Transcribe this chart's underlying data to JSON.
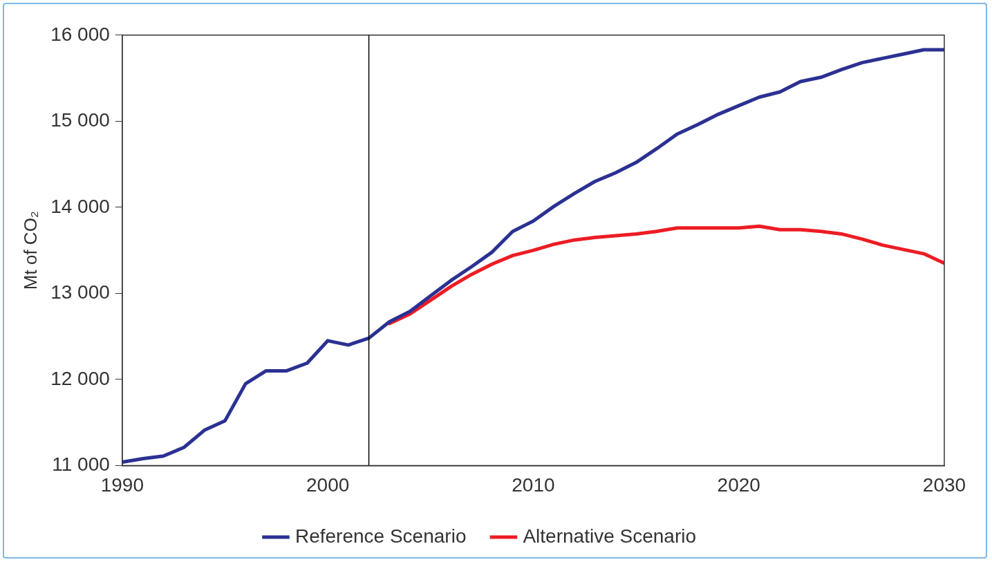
{
  "chart_data": {
    "type": "line",
    "ylabel": "Mt of CO₂",
    "xlim": [
      1990,
      2030
    ],
    "xticks": [
      1990,
      2000,
      2010,
      2020,
      2030
    ],
    "ylim": [
      11000,
      16000
    ],
    "yticks": [
      {
        "value": 11000,
        "label": "11 000"
      },
      {
        "value": 12000,
        "label": "12 000"
      },
      {
        "value": 13000,
        "label": "13 000"
      },
      {
        "value": 14000,
        "label": "14 000"
      },
      {
        "value": 15000,
        "label": "15 000"
      },
      {
        "value": 16000,
        "label": "16 000"
      }
    ],
    "grid": false,
    "legend": "bottom",
    "marker": "none",
    "line_style": "solid",
    "ref_lines": [
      {
        "axis": "x",
        "value": 2002,
        "color": "#000000"
      }
    ],
    "series": [
      {
        "name": "Reference Scenario",
        "color": "#2b3192",
        "x": [
          1990,
          1991,
          1992,
          1993,
          1994,
          1995,
          1996,
          1997,
          1998,
          1999,
          2000,
          2001,
          2002,
          2003,
          2004,
          2005,
          2006,
          2007,
          2008,
          2009,
          2010,
          2011,
          2012,
          2013,
          2014,
          2015,
          2016,
          2017,
          2018,
          2019,
          2020,
          2021,
          2022,
          2023,
          2024,
          2025,
          2026,
          2027,
          2028,
          2029,
          2030
        ],
        "values": [
          11040,
          11080,
          11110,
          11210,
          11410,
          11520,
          11950,
          12100,
          12100,
          12190,
          12450,
          12400,
          12480,
          12670,
          12790,
          12970,
          13150,
          13310,
          13480,
          13720,
          13840,
          14010,
          14160,
          14300,
          14400,
          14520,
          14680,
          14850,
          14960,
          15080,
          15180,
          15280,
          15340,
          15460,
          15510,
          15600,
          15680,
          15730,
          15780,
          15830,
          15830
        ]
      },
      {
        "name": "Alternative Scenario",
        "color": "#ed1c24",
        "x": [
          2003,
          2004,
          2005,
          2006,
          2007,
          2008,
          2009,
          2010,
          2011,
          2012,
          2013,
          2014,
          2015,
          2016,
          2017,
          2018,
          2019,
          2020,
          2021,
          2022,
          2023,
          2024,
          2025,
          2026,
          2027,
          2028,
          2029,
          2030
        ],
        "values": [
          12650,
          12760,
          12920,
          13080,
          13220,
          13340,
          13440,
          13500,
          13570,
          13620,
          13650,
          13670,
          13690,
          13720,
          13760,
          13760,
          13760,
          13760,
          13780,
          13740,
          13740,
          13720,
          13690,
          13630,
          13560,
          13510,
          13460,
          13350
        ]
      }
    ]
  }
}
